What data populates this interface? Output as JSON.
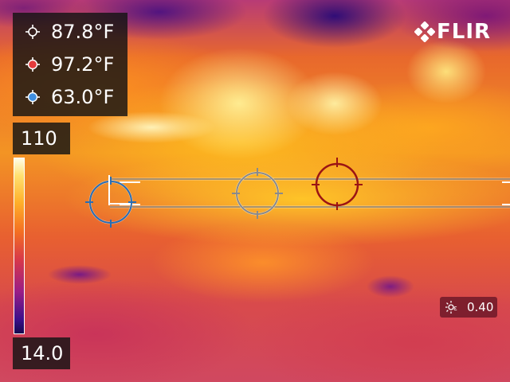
{
  "readouts": [
    {
      "label": "87.8°F",
      "icon": "crosshair-center-icon",
      "color": "#ffffff"
    },
    {
      "label": "97.2°F",
      "icon": "hot-spot-icon",
      "color": "#e53b3b"
    },
    {
      "label": "63.0°F",
      "icon": "cold-spot-icon",
      "color": "#3f8fe0"
    }
  ],
  "scale": {
    "max": "110",
    "min": "14.0"
  },
  "logo": {
    "text": "FLIR"
  },
  "emissivity": {
    "value": "0.40",
    "icon": "emissivity-icon"
  },
  "colors": {
    "hot": "#9b1414",
    "cold": "#2a6db3",
    "center": "#aaaaaa",
    "line": "#555555"
  }
}
